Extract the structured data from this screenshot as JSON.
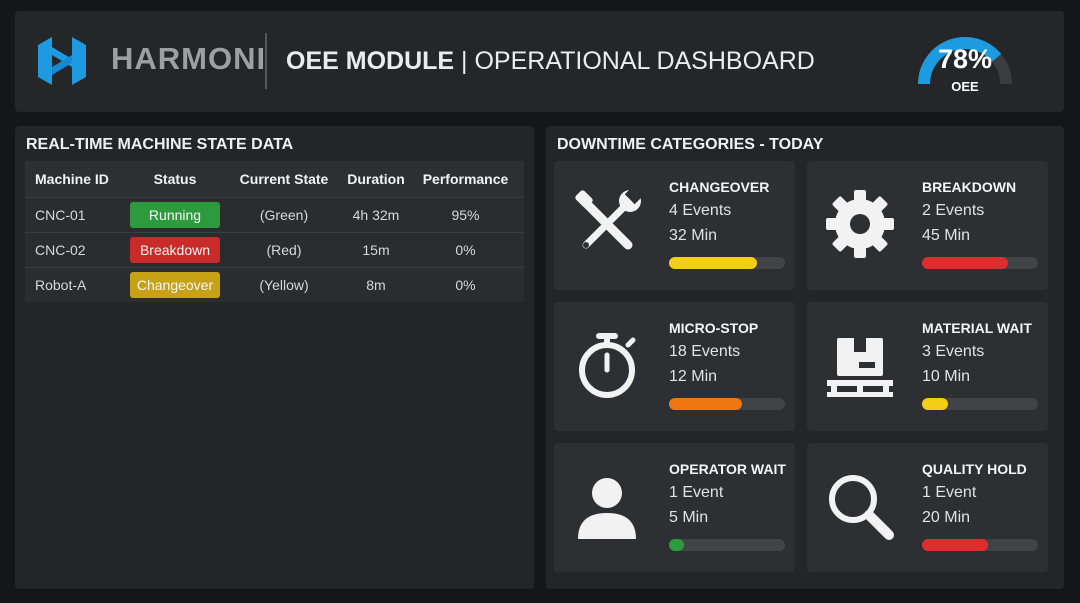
{
  "header": {
    "logo_text": "HARMONI",
    "title_bold": "OEE MODULE",
    "title_rest": " | OPERATIONAL DASHBOARD",
    "oee_value": "78%",
    "oee_label": "OEE",
    "oee_fraction": 0.78,
    "accent_color": "#1e9be0"
  },
  "machine_table": {
    "title": "REAL-TIME MACHINE STATE DATA",
    "columns": [
      "Machine ID",
      "Status",
      "Current State",
      "Duration",
      "Performance"
    ],
    "rows": [
      {
        "id": "CNC-01",
        "status": "Running",
        "status_color": "#2e9a3e",
        "state": "(Green)",
        "duration": "4h 32m",
        "performance": "95%"
      },
      {
        "id": "CNC-02",
        "status": "Breakdown",
        "status_color": "#c92a2a",
        "state": "(Red)",
        "duration": "15m",
        "performance": "0%"
      },
      {
        "id": "Robot-A",
        "status": "Changeover",
        "status_color": "#c7a116",
        "state": "(Yellow)",
        "duration": "8m",
        "performance": "0%"
      }
    ]
  },
  "downtime": {
    "title": "DOWNTIME CATEGORIES - TODAY",
    "categories": [
      {
        "name": "CHANGEOVER",
        "events": "4 Events",
        "minutes": "32 Min",
        "icon": "tools-icon",
        "bar_color": "#f2cf16",
        "bar_fraction": 0.76
      },
      {
        "name": "BREAKDOWN",
        "events": "2 Events",
        "minutes": "45 Min",
        "icon": "gear-icon",
        "bar_color": "#dd2d2d",
        "bar_fraction": 0.74
      },
      {
        "name": "MICRO-STOP",
        "events": "18 Events",
        "minutes": "12 Min",
        "icon": "stopwatch-icon",
        "bar_color": "#f0770f",
        "bar_fraction": 0.63
      },
      {
        "name": "MATERIAL WAIT",
        "events": "3 Events",
        "minutes": "10 Min",
        "icon": "pallet-box-icon",
        "bar_color": "#f2cf16",
        "bar_fraction": 0.22
      },
      {
        "name": "OPERATOR WAIT",
        "events": "1 Event",
        "minutes": "5 Min",
        "icon": "user-icon",
        "bar_color": "#2e9a3e",
        "bar_fraction": 0.13
      },
      {
        "name": "QUALITY HOLD",
        "events": "1 Event",
        "minutes": "20 Min",
        "icon": "magnifier-icon",
        "bar_color": "#dd2d2d",
        "bar_fraction": 0.57
      }
    ]
  }
}
